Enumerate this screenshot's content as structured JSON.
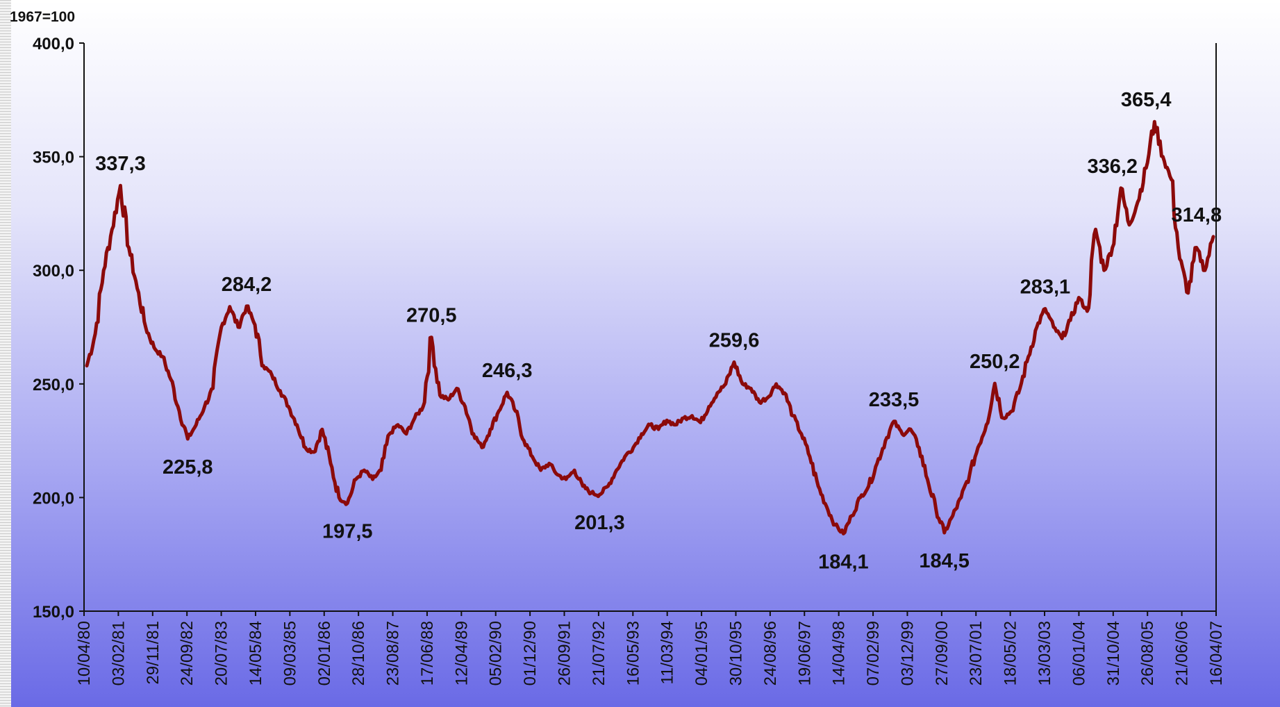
{
  "chart_data": {
    "type": "line",
    "unit_label": "1967=100",
    "ylim": [
      150,
      400
    ],
    "yticks": [
      "400,0",
      "350,0",
      "300,0",
      "250,0",
      "200,0",
      "150,0"
    ],
    "ytick_values": [
      400,
      350,
      300,
      250,
      200,
      150
    ],
    "x_tick_labels": [
      "10/04/80",
      "03/02/81",
      "29/11/81",
      "24/09/82",
      "20/07/83",
      "14/05/84",
      "09/03/85",
      "02/01/86",
      "28/10/86",
      "23/08/87",
      "17/06/88",
      "12/04/89",
      "05/02/90",
      "01/12/90",
      "26/09/91",
      "21/07/92",
      "16/05/93",
      "11/03/94",
      "04/01/95",
      "30/10/95",
      "24/08/96",
      "19/06/97",
      "14/04/98",
      "07/02/99",
      "03/12/99",
      "27/09/00",
      "23/07/01",
      "18/05/02",
      "13/03/03",
      "06/01/04",
      "31/10/04",
      "26/08/05",
      "21/06/06",
      "16/04/07"
    ],
    "grid": false,
    "legend": "none",
    "line_color": "#8b0a0a",
    "series": [
      {
        "values": [
          258,
          272,
          300,
          318,
          337.3,
          310,
          292,
          275,
          266,
          262,
          252,
          238,
          225.8,
          232,
          240,
          248,
          275,
          284,
          275,
          284.2,
          276,
          258,
          254,
          247,
          240,
          232,
          222,
          220,
          230,
          215,
          200,
          197.5,
          208,
          212,
          208,
          212,
          228,
          232,
          228,
          235,
          240,
          270.5,
          245,
          243,
          248,
          240,
          228,
          222,
          230,
          238,
          246.3,
          238,
          225,
          218,
          212,
          215,
          210,
          208,
          212,
          205,
          202,
          201.3,
          205,
          212,
          218,
          222,
          228,
          232,
          230,
          234,
          232,
          235,
          236,
          233,
          240,
          246,
          250,
          259.6,
          250,
          248,
          242,
          244,
          250,
          246,
          236,
          228,
          218,
          205,
          196,
          188,
          184.1,
          192,
          200,
          205,
          215,
          225,
          233.5,
          228,
          230,
          222,
          208,
          195,
          184.5,
          192,
          200,
          210,
          222,
          232,
          250.2,
          235,
          238,
          248,
          262,
          275,
          283.1,
          275,
          270,
          278,
          288,
          282,
          318,
          300,
          310,
          336.2,
          320,
          330,
          345,
          365.4,
          350,
          340,
          305,
          290,
          310,
          300,
          314.8
        ]
      }
    ],
    "annotations": [
      {
        "label": "337,3",
        "x": 4,
        "y": 337.3
      },
      {
        "label": "225,8",
        "x": 12,
        "y": 225.8
      },
      {
        "label": "284,2",
        "x": 19,
        "y": 284.2
      },
      {
        "label": "197,5",
        "x": 31,
        "y": 197.5
      },
      {
        "label": "270,5",
        "x": 41,
        "y": 270.5
      },
      {
        "label": "246,3",
        "x": 50,
        "y": 246.3
      },
      {
        "label": "201,3",
        "x": 61,
        "y": 201.3
      },
      {
        "label": "259,6",
        "x": 77,
        "y": 259.6
      },
      {
        "label": "184,1",
        "x": 90,
        "y": 184.1
      },
      {
        "label": "233,5",
        "x": 96,
        "y": 233.5
      },
      {
        "label": "184,5",
        "x": 102,
        "y": 184.5
      },
      {
        "label": "250,2",
        "x": 108,
        "y": 250.2
      },
      {
        "label": "283,1",
        "x": 114,
        "y": 283.1
      },
      {
        "label": "336,2",
        "x": 122,
        "y": 336.2
      },
      {
        "label": "365,4",
        "x": 126,
        "y": 365.4
      },
      {
        "label": "314,8",
        "x": 132,
        "y": 314.8
      }
    ]
  }
}
